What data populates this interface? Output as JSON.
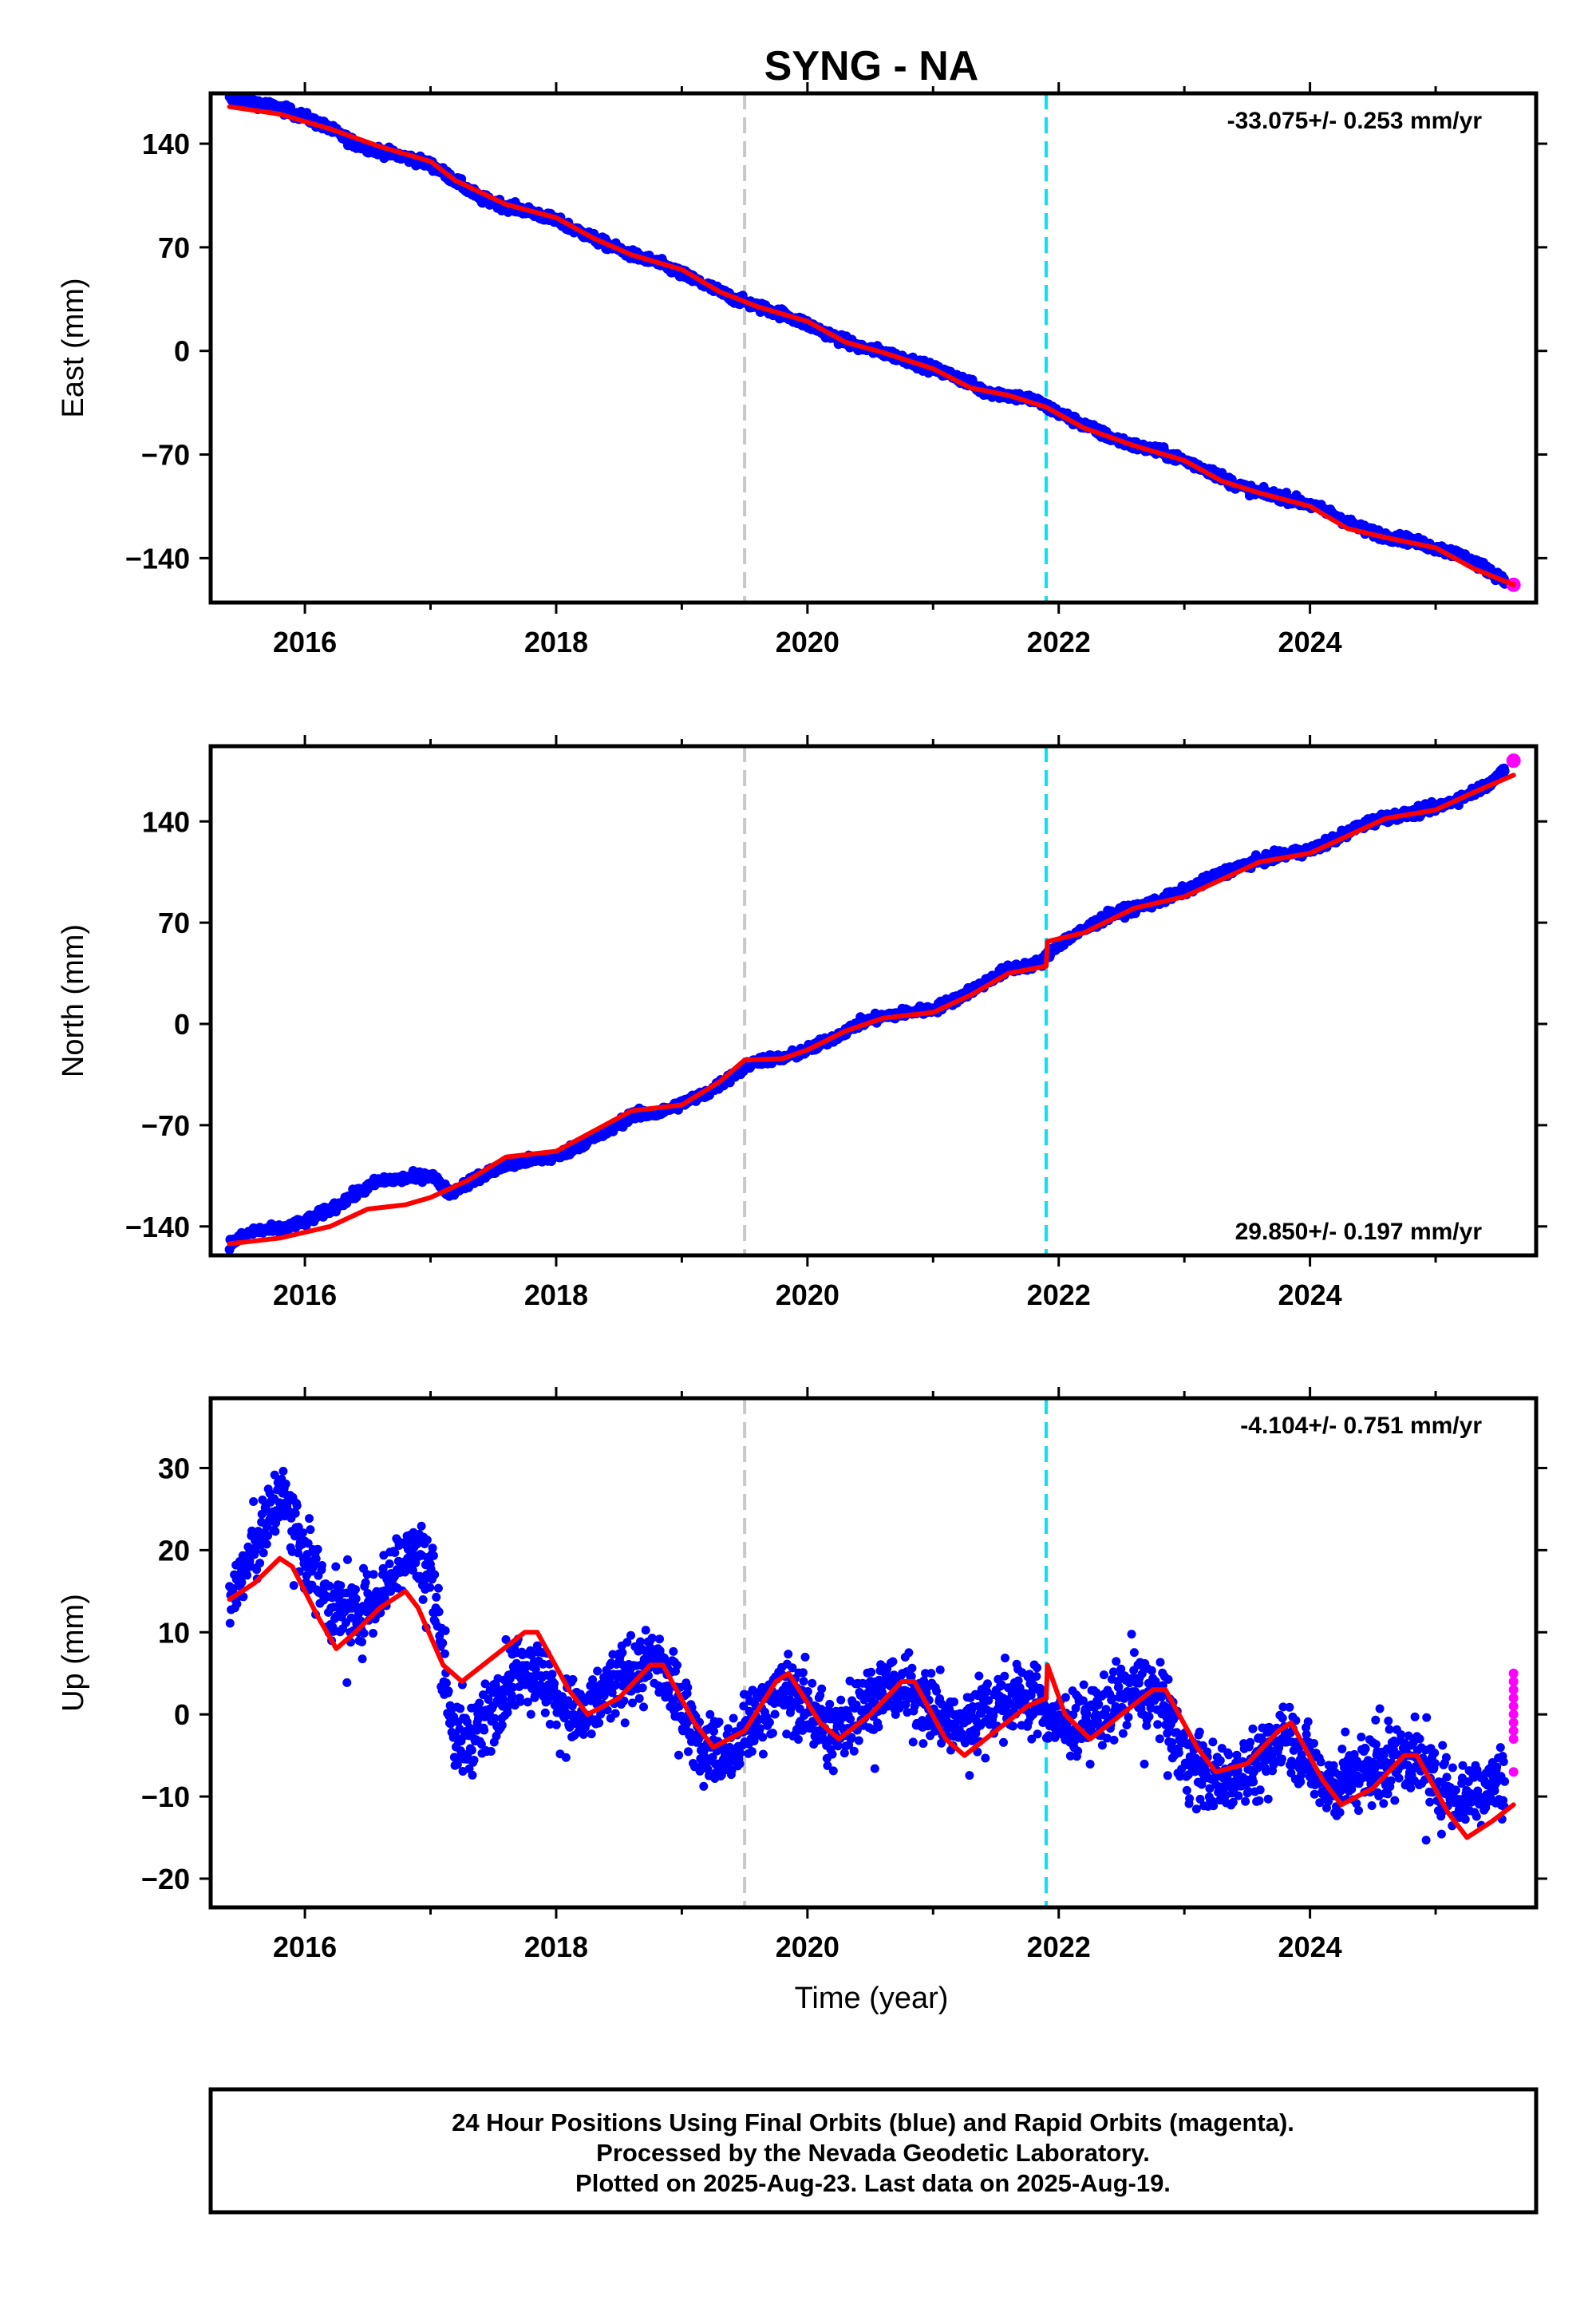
{
  "title": "SYNG - NA",
  "colors": {
    "final": "#0000ff",
    "rapid": "#ff00ff",
    "model": "#ff0000",
    "line_gray": "#c8c8c8",
    "line_cyan": "#00e5ee"
  },
  "xlabel": "Time (year)",
  "footer": [
    "24 Hour Positions Using Final Orbits (blue) and Rapid Orbits (magenta).",
    "Processed by the Nevada Geodetic Laboratory.",
    "Plotted on 2025-Aug-23. Last data on 2025-Aug-19."
  ],
  "chart_data": [
    {
      "type": "scatter",
      "panel": "east",
      "ylabel": "East (mm)",
      "rate_text": "-33.075+/- 0.253 mm/yr",
      "rate_position": "top-right",
      "xlim": [
        2015.25,
        2025.8
      ],
      "ylim": [
        -170,
        174
      ],
      "xticks": [
        2016,
        2018,
        2020,
        2022,
        2024
      ],
      "yticks": [
        140,
        70,
        0,
        -70,
        -140
      ],
      "vlines": [
        {
          "x": 2019.5,
          "color": "gray"
        },
        {
          "x": 2021.9,
          "color": "cyan"
        }
      ],
      "series": [
        {
          "role": "final",
          "x": [
            2015.4,
            2015.6,
            2015.8,
            2016.0,
            2016.2,
            2016.4,
            2016.6,
            2016.8,
            2017.0,
            2017.2,
            2017.4,
            2017.6,
            2017.8,
            2018.0,
            2018.2,
            2018.4,
            2018.6,
            2018.8,
            2019.0,
            2019.2,
            2019.4,
            2019.6,
            2019.8,
            2020.0,
            2020.2,
            2020.4,
            2020.6,
            2020.8,
            2021.0,
            2021.2,
            2021.4,
            2021.6,
            2021.8,
            2022.0,
            2022.2,
            2022.4,
            2022.6,
            2022.8,
            2023.0,
            2023.2,
            2023.4,
            2023.6,
            2023.8,
            2024.0,
            2024.2,
            2024.4,
            2024.6,
            2024.8,
            2025.0,
            2025.2,
            2025.4,
            2025.55
          ],
          "y": [
            170,
            168,
            164,
            158,
            150,
            140,
            135,
            131,
            126,
            115,
            103,
            98,
            94,
            88,
            80,
            72,
            65,
            60,
            52,
            44,
            36,
            30,
            25,
            18,
            10,
            3,
            -1,
            -6,
            -12,
            -18,
            -27,
            -30,
            -33,
            -42,
            -50,
            -58,
            -64,
            -68,
            -74,
            -81,
            -90,
            -96,
            -99,
            -104,
            -111,
            -120,
            -125,
            -128,
            -133,
            -138,
            -147,
            -155
          ]
        },
        {
          "role": "rapid",
          "x": [
            2025.62
          ],
          "y": [
            -158
          ]
        },
        {
          "role": "model",
          "x": [
            2015.4,
            2015.8,
            2016.2,
            2016.6,
            2017.0,
            2017.2,
            2017.6,
            2018.0,
            2018.3,
            2018.6,
            2019.0,
            2019.3,
            2019.6,
            2020.0,
            2020.3,
            2020.6,
            2021.0,
            2021.3,
            2021.6,
            2021.9,
            2022.2,
            2022.6,
            2023.0,
            2023.3,
            2023.6,
            2024.0,
            2024.3,
            2024.6,
            2025.0,
            2025.3,
            2025.62
          ],
          "y": [
            165,
            160,
            150,
            138,
            128,
            115,
            99,
            90,
            76,
            65,
            55,
            40,
            30,
            20,
            6,
            -1,
            -12,
            -25,
            -30,
            -38,
            -52,
            -64,
            -74,
            -88,
            -96,
            -105,
            -120,
            -126,
            -133,
            -147,
            -158
          ]
        }
      ]
    },
    {
      "type": "scatter",
      "panel": "north",
      "ylabel": "North (mm)",
      "rate_text": "29.850+/- 0.197 mm/yr",
      "rate_position": "bottom-right",
      "xlim": [
        2015.25,
        2025.8
      ],
      "ylim": [
        -160,
        192
      ],
      "xticks": [
        2016,
        2018,
        2020,
        2022,
        2024
      ],
      "yticks": [
        140,
        70,
        0,
        -70,
        -140
      ],
      "vlines": [
        {
          "x": 2019.5,
          "color": "gray"
        },
        {
          "x": 2021.9,
          "color": "cyan"
        }
      ],
      "series": [
        {
          "role": "final",
          "x": [
            2015.4,
            2015.6,
            2015.8,
            2016.0,
            2016.2,
            2016.4,
            2016.6,
            2016.8,
            2017.0,
            2017.15,
            2017.4,
            2017.6,
            2017.8,
            2018.0,
            2018.2,
            2018.4,
            2018.6,
            2018.8,
            2019.0,
            2019.2,
            2019.4,
            2019.6,
            2019.8,
            2020.0,
            2020.2,
            2020.4,
            2020.6,
            2020.8,
            2021.0,
            2021.2,
            2021.4,
            2021.6,
            2021.85,
            2022.0,
            2022.2,
            2022.4,
            2022.6,
            2022.8,
            2023.0,
            2023.2,
            2023.4,
            2023.6,
            2023.8,
            2024.0,
            2024.2,
            2024.4,
            2024.6,
            2024.8,
            2025.0,
            2025.2,
            2025.4,
            2025.55
          ],
          "y": [
            -152,
            -143,
            -142,
            -137,
            -128,
            -118,
            -108,
            -107,
            -104,
            -117,
            -105,
            -98,
            -94,
            -92,
            -83,
            -75,
            -63,
            -62,
            -55,
            -48,
            -36,
            -25,
            -24,
            -18,
            -10,
            0,
            5,
            8,
            10,
            18,
            28,
            38,
            42,
            55,
            65,
            75,
            80,
            85,
            92,
            100,
            108,
            113,
            117,
            120,
            128,
            137,
            143,
            145,
            150,
            156,
            165,
            175
          ]
        },
        {
          "role": "rapid",
          "x": [
            2025.62
          ],
          "y": [
            182
          ]
        },
        {
          "role": "model",
          "x": [
            2015.4,
            2015.8,
            2016.2,
            2016.5,
            2016.8,
            2017.0,
            2017.3,
            2017.6,
            2018.0,
            2018.3,
            2018.6,
            2019.0,
            2019.3,
            2019.5,
            2019.8,
            2020.0,
            2020.3,
            2020.6,
            2021.0,
            2021.3,
            2021.6,
            2021.9,
            2021.91,
            2022.2,
            2022.6,
            2023.0,
            2023.3,
            2023.6,
            2024.0,
            2024.3,
            2024.6,
            2025.0,
            2025.3,
            2025.62
          ],
          "y": [
            -152,
            -148,
            -140,
            -128,
            -125,
            -120,
            -108,
            -92,
            -88,
            -74,
            -60,
            -56,
            -40,
            -25,
            -24,
            -18,
            -5,
            4,
            8,
            20,
            35,
            40,
            57,
            63,
            80,
            88,
            100,
            112,
            118,
            130,
            142,
            148,
            160,
            172
          ]
        }
      ]
    },
    {
      "type": "scatter",
      "panel": "up",
      "ylabel": "Up (mm)",
      "rate_text": "-4.104+/- 0.751 mm/yr",
      "rate_position": "top-right",
      "xlim": [
        2015.25,
        2025.8
      ],
      "ylim": [
        -23.5,
        38.5
      ],
      "xticks": [
        2016,
        2018,
        2020,
        2022,
        2024
      ],
      "yticks": [
        30,
        20,
        10,
        0,
        -10,
        -20
      ],
      "vlines": [
        {
          "x": 2019.5,
          "color": "gray"
        },
        {
          "x": 2021.9,
          "color": "cyan"
        }
      ],
      "series": [
        {
          "role": "final_trend",
          "x": [
            2015.4,
            2015.6,
            2015.8,
            2016.0,
            2016.2,
            2016.4,
            2016.6,
            2016.8,
            2017.0,
            2017.2,
            2017.4,
            2017.6,
            2017.8,
            2018.0,
            2018.2,
            2018.4,
            2018.6,
            2018.8,
            2019.0,
            2019.2,
            2019.4,
            2019.6,
            2019.8,
            2020.0,
            2020.2,
            2020.4,
            2020.6,
            2020.8,
            2021.0,
            2021.2,
            2021.4,
            2021.6,
            2021.8,
            2022.0,
            2022.2,
            2022.4,
            2022.6,
            2022.8,
            2023.0,
            2023.2,
            2023.4,
            2023.6,
            2023.8,
            2024.0,
            2024.2,
            2024.4,
            2024.6,
            2024.8,
            2025.0,
            2025.2,
            2025.4,
            2025.55
          ],
          "y": [
            14,
            20,
            27,
            20,
            13,
            12,
            15,
            20,
            18,
            -4,
            -2,
            4,
            6,
            2,
            -1,
            3,
            5,
            7,
            1,
            -4,
            -5,
            0,
            3,
            1,
            -3,
            1,
            3,
            3,
            1,
            -2,
            1,
            2,
            2,
            -1,
            -1,
            1,
            3,
            2,
            -5,
            -8,
            -7,
            -6,
            -2,
            -6,
            -9,
            -7,
            -6,
            -5,
            -8,
            -10,
            -9,
            -8
          ]
        },
        {
          "role": "rapid",
          "x": [
            2025.62,
            2025.62,
            2025.62,
            2025.62,
            2025.62,
            2025.62,
            2025.62,
            2025.62,
            2025.62,
            2025.62
          ],
          "y": [
            5,
            4,
            3,
            2,
            1,
            0,
            -1,
            -2,
            -3,
            -7
          ]
        },
        {
          "role": "model",
          "x": [
            2015.4,
            2015.6,
            2015.8,
            2015.9,
            2016.1,
            2016.25,
            2016.4,
            2016.6,
            2016.8,
            2016.9,
            2017.1,
            2017.25,
            2017.5,
            2017.75,
            2017.85,
            2018.1,
            2018.25,
            2018.5,
            2018.75,
            2018.85,
            2019.1,
            2019.25,
            2019.5,
            2019.75,
            2019.85,
            2020.1,
            2020.25,
            2020.5,
            2020.75,
            2020.85,
            2021.1,
            2021.25,
            2021.5,
            2021.75,
            2021.9,
            2021.91,
            2022.05,
            2022.25,
            2022.5,
            2022.75,
            2022.85,
            2023.1,
            2023.25,
            2023.5,
            2023.75,
            2023.85,
            2024.1,
            2024.25,
            2024.5,
            2024.75,
            2024.85,
            2025.1,
            2025.25,
            2025.45,
            2025.62
          ],
          "y": [
            14,
            16,
            19,
            18,
            12,
            8,
            10,
            13,
            15,
            13,
            6,
            4,
            7,
            10,
            10,
            3,
            0,
            2,
            6,
            6,
            -1,
            -4,
            -2,
            4,
            5,
            -1,
            -3,
            0,
            4,
            4,
            -3,
            -5,
            -2,
            1,
            2,
            6,
            0,
            -3,
            0,
            3,
            3,
            -4,
            -7,
            -6,
            -2,
            -1,
            -8,
            -11,
            -9,
            -5,
            -5,
            -12,
            -15,
            -13,
            -11
          ]
        }
      ]
    }
  ]
}
